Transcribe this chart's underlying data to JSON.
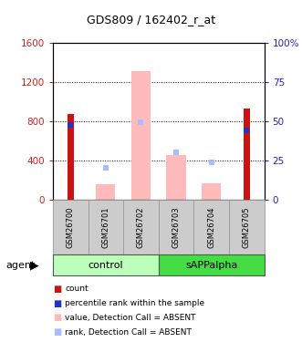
{
  "title": "GDS809 / 162402_r_at",
  "samples": [
    "GSM26700",
    "GSM26701",
    "GSM26702",
    "GSM26703",
    "GSM26704",
    "GSM26705"
  ],
  "count_values": [
    880,
    0,
    0,
    0,
    0,
    930
  ],
  "rank_values": [
    48,
    0,
    0,
    0,
    0,
    44
  ],
  "absent_value_values": [
    0,
    160,
    1310,
    460,
    175,
    0
  ],
  "absent_rank_left": [
    0,
    330,
    795,
    490,
    385,
    0
  ],
  "ylim_left": [
    0,
    1600
  ],
  "ylim_right": [
    0,
    100
  ],
  "yticks_left": [
    0,
    400,
    800,
    1200,
    1600
  ],
  "yticks_right": [
    0,
    25,
    50,
    75,
    100
  ],
  "count_color": "#cc1111",
  "rank_color": "#2233cc",
  "absent_value_color": "#ffbbbb",
  "absent_rank_color": "#aabbff",
  "left_tick_color": "#cc2222",
  "right_tick_color": "#2222bb",
  "ctrl_color": "#bbffbb",
  "sapp_color": "#44dd44",
  "gray_box_color": "#cccccc",
  "gray_box_edge": "#999999"
}
